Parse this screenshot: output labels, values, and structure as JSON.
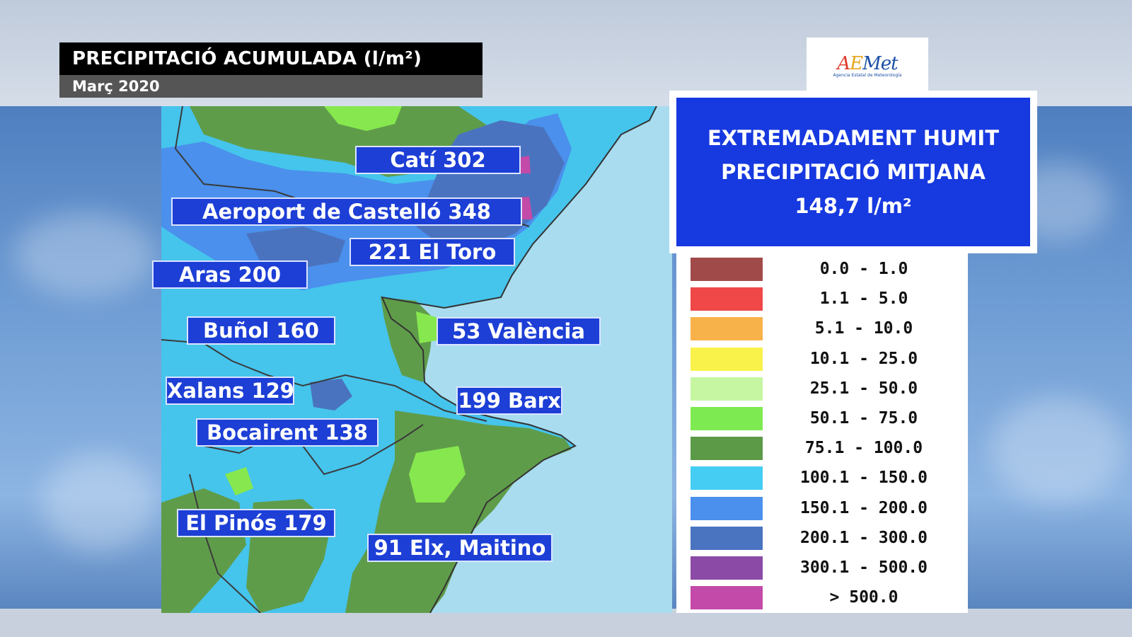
{
  "title": "PRECIPITACIÓ ACUMULADA (l/m²)",
  "subtitle": "Març 2020",
  "logo": {
    "text": "AEMet",
    "subtext": "Agencia Estatal de Meteorología"
  },
  "summary": {
    "line1": "EXTREMADAMENT HUMIT",
    "line2": "PRECIPITACIÓ MITJANA",
    "line3": "148,7 l/m²"
  },
  "stations": [
    {
      "text": "Catí 302"
    },
    {
      "text": "Aeroport de Castelló 348"
    },
    {
      "text": "221 El Toro"
    },
    {
      "text": "Aras 200"
    },
    {
      "text": "Buñol 160"
    },
    {
      "text": "53 València"
    },
    {
      "text": "Xalans 129"
    },
    {
      "text": "199 Barx"
    },
    {
      "text": "Bocairent 138"
    },
    {
      "text": "El Pinós 179"
    },
    {
      "text": "91 Elx, Maitino"
    }
  ],
  "legend": [
    {
      "range": "0.0 - 1.0",
      "color": "#a04a4a"
    },
    {
      "range": "1.1 - 5.0",
      "color": "#f04848"
    },
    {
      "range": "5.1 - 10.0",
      "color": "#f8b24a"
    },
    {
      "range": "10.1 - 25.0",
      "color": "#f8f24a"
    },
    {
      "range": "25.1 - 50.0",
      "color": "#c6f6a2"
    },
    {
      "range": "50.1 - 75.0",
      "color": "#7eea52"
    },
    {
      "range": "75.1 - 100.0",
      "color": "#5c9a48"
    },
    {
      "range": "100.1 - 150.0",
      "color": "#45cdf4"
    },
    {
      "range": "150.1 - 200.0",
      "color": "#4a90ec"
    },
    {
      "range": "200.1 - 300.0",
      "color": "#4a74c0"
    },
    {
      "range": "300.1 - 500.0",
      "color": "#8a4aa6"
    },
    {
      "range": "> 500.0",
      "color": "#c34aa8"
    }
  ]
}
